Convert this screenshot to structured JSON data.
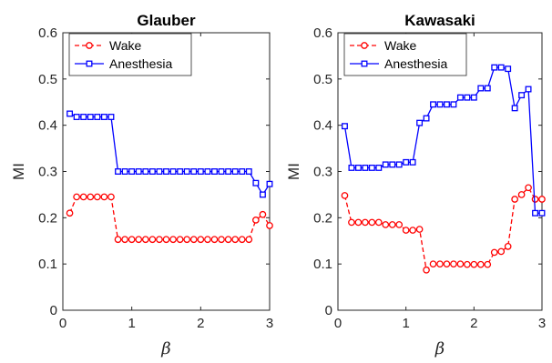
{
  "chart_data": [
    {
      "type": "line",
      "title": "Glauber",
      "xlabel": "β",
      "ylabel": "MI",
      "xlim": [
        0,
        3
      ],
      "ylim": [
        0,
        0.6
      ],
      "xticks": [
        "0",
        "1",
        "2",
        "3"
      ],
      "yticks": [
        "0",
        "0.1",
        "0.2",
        "0.3",
        "0.4",
        "0.5",
        "0.6"
      ],
      "legend_position": "top-left",
      "x": [
        0.1,
        0.2,
        0.3,
        0.4,
        0.5,
        0.6,
        0.7,
        0.8,
        0.9,
        1.0,
        1.1,
        1.2,
        1.3,
        1.4,
        1.5,
        1.6,
        1.7,
        1.8,
        1.9,
        2.0,
        2.1,
        2.2,
        2.3,
        2.4,
        2.5,
        2.6,
        2.7,
        2.8,
        2.9,
        3.0
      ],
      "series": [
        {
          "name": "Wake",
          "color": "#ff0000",
          "linestyle": "dashed",
          "marker": "circle",
          "values": [
            0.21,
            0.245,
            0.245,
            0.245,
            0.245,
            0.245,
            0.245,
            0.153,
            0.153,
            0.153,
            0.153,
            0.153,
            0.153,
            0.153,
            0.153,
            0.153,
            0.153,
            0.153,
            0.153,
            0.153,
            0.153,
            0.153,
            0.153,
            0.153,
            0.153,
            0.153,
            0.153,
            0.195,
            0.207,
            0.183
          ]
        },
        {
          "name": "Anesthesia",
          "color": "#0000ff",
          "linestyle": "solid",
          "marker": "square",
          "values": [
            0.425,
            0.418,
            0.418,
            0.418,
            0.418,
            0.418,
            0.418,
            0.3,
            0.3,
            0.3,
            0.3,
            0.3,
            0.3,
            0.3,
            0.3,
            0.3,
            0.3,
            0.3,
            0.3,
            0.3,
            0.3,
            0.3,
            0.3,
            0.3,
            0.3,
            0.3,
            0.3,
            0.275,
            0.25,
            0.273
          ]
        }
      ]
    },
    {
      "type": "line",
      "title": "Kawasaki",
      "xlabel": "β",
      "ylabel": "MI",
      "xlim": [
        0,
        3
      ],
      "ylim": [
        0,
        0.6
      ],
      "xticks": [
        "0",
        "1",
        "2",
        "3"
      ],
      "yticks": [
        "0",
        "0.1",
        "0.2",
        "0.3",
        "0.4",
        "0.5",
        "0.6"
      ],
      "legend_position": "top-left",
      "x": [
        0.1,
        0.2,
        0.3,
        0.4,
        0.5,
        0.6,
        0.7,
        0.8,
        0.9,
        1.0,
        1.1,
        1.2,
        1.3,
        1.4,
        1.5,
        1.6,
        1.7,
        1.8,
        1.9,
        2.0,
        2.1,
        2.2,
        2.3,
        2.4,
        2.5,
        2.6,
        2.7,
        2.8,
        2.9,
        3.0
      ],
      "series": [
        {
          "name": "Wake",
          "color": "#ff0000",
          "linestyle": "dashed",
          "marker": "circle",
          "values": [
            0.248,
            0.19,
            0.19,
            0.19,
            0.19,
            0.19,
            0.185,
            0.185,
            0.185,
            0.173,
            0.173,
            0.175,
            0.087,
            0.1,
            0.1,
            0.1,
            0.1,
            0.1,
            0.099,
            0.099,
            0.099,
            0.099,
            0.125,
            0.127,
            0.138,
            0.24,
            0.25,
            0.265,
            0.24,
            0.24
          ]
        },
        {
          "name": "Anesthesia",
          "color": "#0000ff",
          "linestyle": "solid",
          "marker": "square",
          "values": [
            0.398,
            0.308,
            0.308,
            0.308,
            0.308,
            0.308,
            0.315,
            0.315,
            0.315,
            0.32,
            0.32,
            0.405,
            0.415,
            0.445,
            0.445,
            0.445,
            0.445,
            0.46,
            0.46,
            0.46,
            0.48,
            0.48,
            0.525,
            0.525,
            0.522,
            0.437,
            0.465,
            0.478,
            0.21,
            0.21
          ]
        }
      ]
    }
  ]
}
